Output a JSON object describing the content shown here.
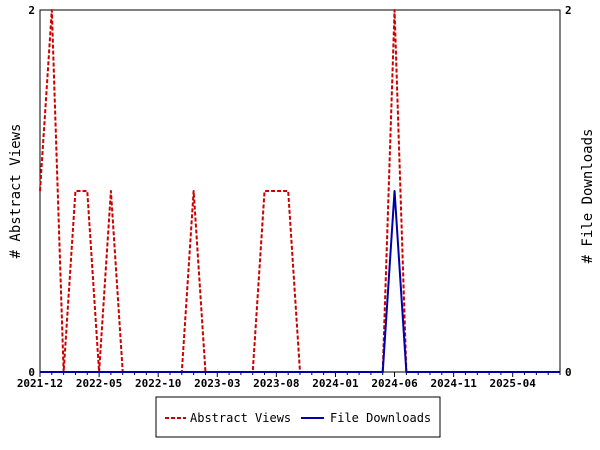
{
  "chart_data": {
    "type": "line",
    "ylabel_left": "# Abstract Views",
    "ylabel_right": "# File Downloads",
    "ylim_left": [
      0,
      2
    ],
    "ylim_right": [
      0,
      2
    ],
    "y_ticks_left": [
      "0",
      "2"
    ],
    "y_ticks_right": [
      "0",
      "2"
    ],
    "x_tick_labels": [
      "2021-12",
      "2022-05",
      "2022-10",
      "2023-03",
      "2023-08",
      "2024-01",
      "2024-06",
      "2024-11",
      "2025-04"
    ],
    "x_tick_index_labels": [
      0,
      5,
      10,
      15,
      20,
      25,
      30,
      35,
      40
    ],
    "grid": false,
    "legend_position": "bottom",
    "series": [
      {
        "name": "Abstract Views",
        "color": "#cc0000",
        "style": "dashed",
        "x_index": [
          0,
          1,
          2,
          3,
          4,
          5,
          6,
          7,
          8,
          9,
          10,
          11,
          12,
          13,
          14,
          15,
          16,
          17,
          18,
          19,
          20,
          21,
          22,
          23,
          24,
          25,
          26,
          27,
          28,
          29,
          30,
          31,
          32,
          33,
          34,
          35,
          36,
          37,
          38,
          39,
          40,
          41,
          42,
          43,
          44
        ],
        "values": [
          1,
          2,
          0,
          1,
          1,
          0,
          1,
          0,
          0,
          0,
          0,
          0,
          0,
          1,
          0,
          0,
          0,
          0,
          0,
          1,
          1,
          1,
          0,
          0,
          0,
          0,
          0,
          0,
          0,
          0,
          2,
          0,
          0,
          0,
          0,
          0,
          0,
          0,
          0,
          0,
          0,
          0,
          0,
          0,
          0
        ]
      },
      {
        "name": "File Downloads",
        "color": "#0000aa",
        "style": "solid",
        "x_index": [
          0,
          1,
          2,
          3,
          4,
          5,
          6,
          7,
          8,
          9,
          10,
          11,
          12,
          13,
          14,
          15,
          16,
          17,
          18,
          19,
          20,
          21,
          22,
          23,
          24,
          25,
          26,
          27,
          28,
          29,
          30,
          31,
          32,
          33,
          34,
          35,
          36,
          37,
          38,
          39,
          40,
          41,
          42,
          43,
          44
        ],
        "values": [
          0,
          0,
          0,
          0,
          0,
          0,
          0,
          0,
          0,
          0,
          0,
          0,
          0,
          0,
          0,
          0,
          0,
          0,
          0,
          0,
          0,
          0,
          0,
          0,
          0,
          0,
          0,
          0,
          0,
          0,
          1,
          0,
          0,
          0,
          0,
          0,
          0,
          0,
          0,
          0,
          0,
          0,
          0,
          0,
          0
        ]
      }
    ],
    "legend": [
      {
        "label": "Abstract Views",
        "color": "#cc0000",
        "style": "dashed"
      },
      {
        "label": "File Downloads",
        "color": "#0000aa",
        "style": "solid"
      }
    ]
  }
}
